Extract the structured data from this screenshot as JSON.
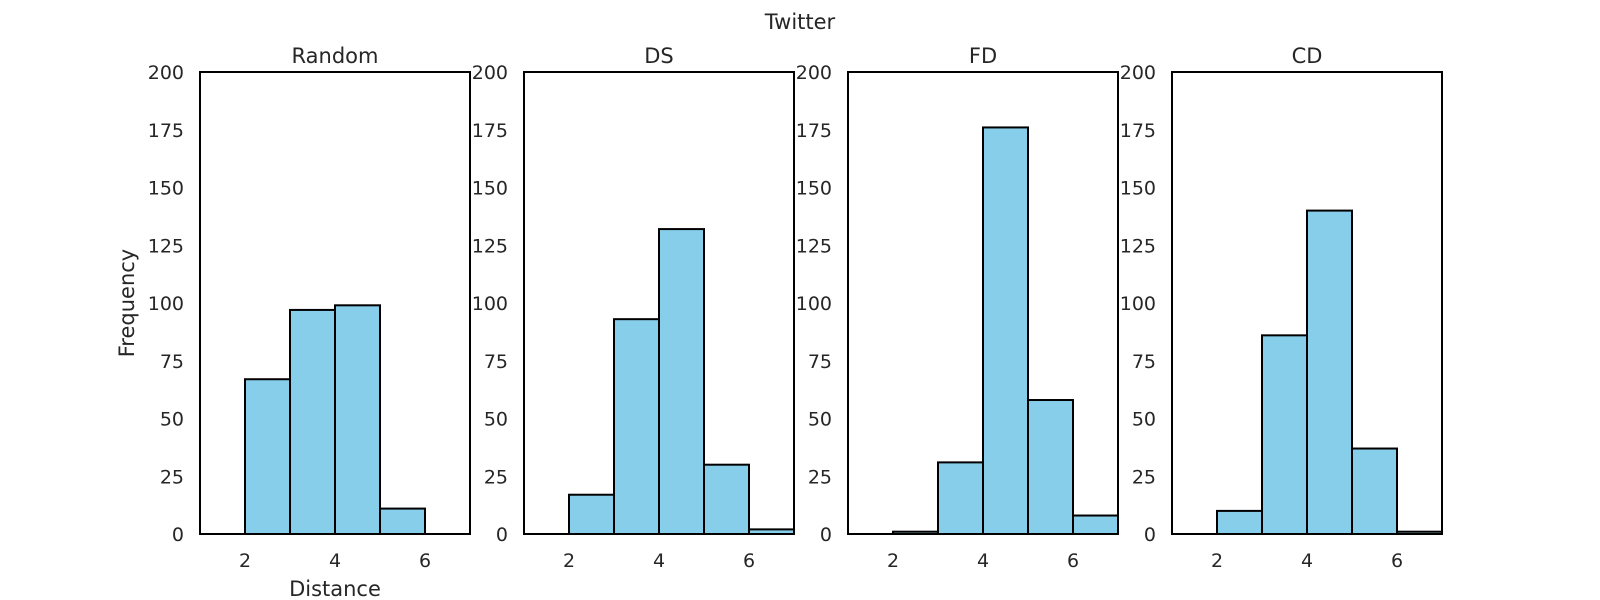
{
  "figure": {
    "title": "Twitter"
  },
  "colors": {
    "bar_fill": "#87ceeb",
    "bar_edge": "#000000",
    "frame": "#000000",
    "text": "#262626"
  },
  "chart_data": [
    {
      "type": "bar",
      "title": "Random",
      "xlabel": "Distance",
      "ylabel": "Frequency",
      "xlim": [
        1,
        7
      ],
      "ylim": [
        0,
        200
      ],
      "xticks": [
        2,
        4,
        6
      ],
      "yticks": [
        0,
        25,
        50,
        75,
        100,
        125,
        150,
        175,
        200
      ],
      "bin_edges": [
        2,
        3,
        4,
        5,
        6
      ],
      "values": [
        67,
        97,
        99,
        11
      ],
      "grid": false
    },
    {
      "type": "bar",
      "title": "DS",
      "xlabel": "",
      "ylabel": "",
      "xlim": [
        1,
        7
      ],
      "ylim": [
        0,
        200
      ],
      "xticks": [
        2,
        4,
        6
      ],
      "yticks": [
        0,
        25,
        50,
        75,
        100,
        125,
        150,
        175,
        200
      ],
      "bin_edges": [
        2,
        3,
        4,
        5,
        6,
        7
      ],
      "values": [
        17,
        93,
        132,
        30,
        2
      ],
      "grid": false
    },
    {
      "type": "bar",
      "title": "FD",
      "xlabel": "",
      "ylabel": "",
      "xlim": [
        1,
        7
      ],
      "ylim": [
        0,
        200
      ],
      "xticks": [
        2,
        4,
        6
      ],
      "yticks": [
        0,
        25,
        50,
        75,
        100,
        125,
        150,
        175,
        200
      ],
      "bin_edges": [
        2,
        3,
        4,
        5,
        6,
        7
      ],
      "values": [
        1,
        31,
        176,
        58,
        8
      ],
      "grid": false
    },
    {
      "type": "bar",
      "title": "CD",
      "xlabel": "",
      "ylabel": "",
      "xlim": [
        1,
        7
      ],
      "ylim": [
        0,
        200
      ],
      "xticks": [
        2,
        4,
        6
      ],
      "yticks": [
        0,
        25,
        50,
        75,
        100,
        125,
        150,
        175,
        200
      ],
      "bin_edges": [
        2,
        3,
        4,
        5,
        6,
        7
      ],
      "values": [
        10,
        86,
        140,
        37,
        1
      ],
      "grid": false
    }
  ]
}
